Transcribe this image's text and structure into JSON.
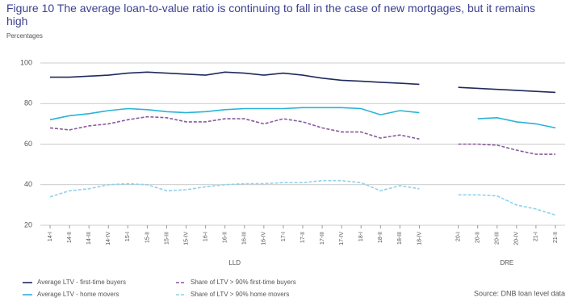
{
  "chart_data": {
    "type": "line",
    "title": "Figure 10  The average loan-to-value ratio is continuing to fall in the case of new mortgages, but it remains high",
    "subtitle": "Percentages",
    "source": "Source: DNB loan level data",
    "groups": [
      "LLD",
      "DRE"
    ],
    "categories": [
      "14-I",
      "14-II",
      "14-III",
      "14-IV",
      "15-I",
      "15-II",
      "15-III",
      "15-IV",
      "16-I",
      "16-II",
      "16-III",
      "16-IV",
      "17-I",
      "17-II",
      "17-III",
      "17-IV",
      "18-I",
      "18-II",
      "18-III",
      "18-IV",
      null,
      "20-I",
      "20-II",
      "20-III",
      "20-IV",
      "21-I",
      "21-II"
    ],
    "series": [
      {
        "name": "Average LTV - first-time buyers",
        "color": "#1f2a5c",
        "dashed": false,
        "values": [
          93,
          93,
          93.5,
          94,
          95,
          95.5,
          95,
          94.5,
          94,
          95.5,
          95,
          94,
          95,
          94,
          92.5,
          91.5,
          91,
          90.5,
          90,
          89.5,
          null,
          88,
          87.5,
          87,
          86.5,
          86,
          85.5
        ]
      },
      {
        "name": "Average LTV - home movers",
        "color": "#2ab3d6",
        "dashed": false,
        "values": [
          72,
          74,
          75,
          76.5,
          77.5,
          77,
          76,
          75.5,
          76,
          77,
          77.5,
          77.5,
          77.5,
          78,
          78,
          78,
          77.5,
          74.5,
          76.5,
          75.5,
          null,
          null,
          72.5,
          73,
          71,
          70,
          68
        ]
      },
      {
        "name": "Share of LTV > 90% first-time buyers",
        "color": "#8a5a9e",
        "dashed": true,
        "values": [
          68,
          67,
          69,
          70,
          72,
          73.5,
          73,
          71,
          71,
          72.5,
          72.5,
          70,
          72.5,
          71,
          68,
          66,
          66,
          63,
          64.5,
          62.5,
          null,
          60,
          60,
          59.5,
          57,
          55,
          55
        ]
      },
      {
        "name": "Share of LTV > 90% home movers",
        "color": "#8fd3ea",
        "dashed": true,
        "values": [
          34,
          37,
          38,
          40,
          40.5,
          40,
          37,
          37.5,
          39,
          40,
          40.5,
          40.5,
          41,
          41,
          42,
          42,
          41,
          37,
          39.5,
          38,
          null,
          35,
          35,
          34.5,
          30,
          28,
          25
        ]
      }
    ],
    "ylim": [
      20,
      100
    ],
    "yticks": [
      20,
      40,
      60,
      80,
      100
    ],
    "grid": true
  }
}
